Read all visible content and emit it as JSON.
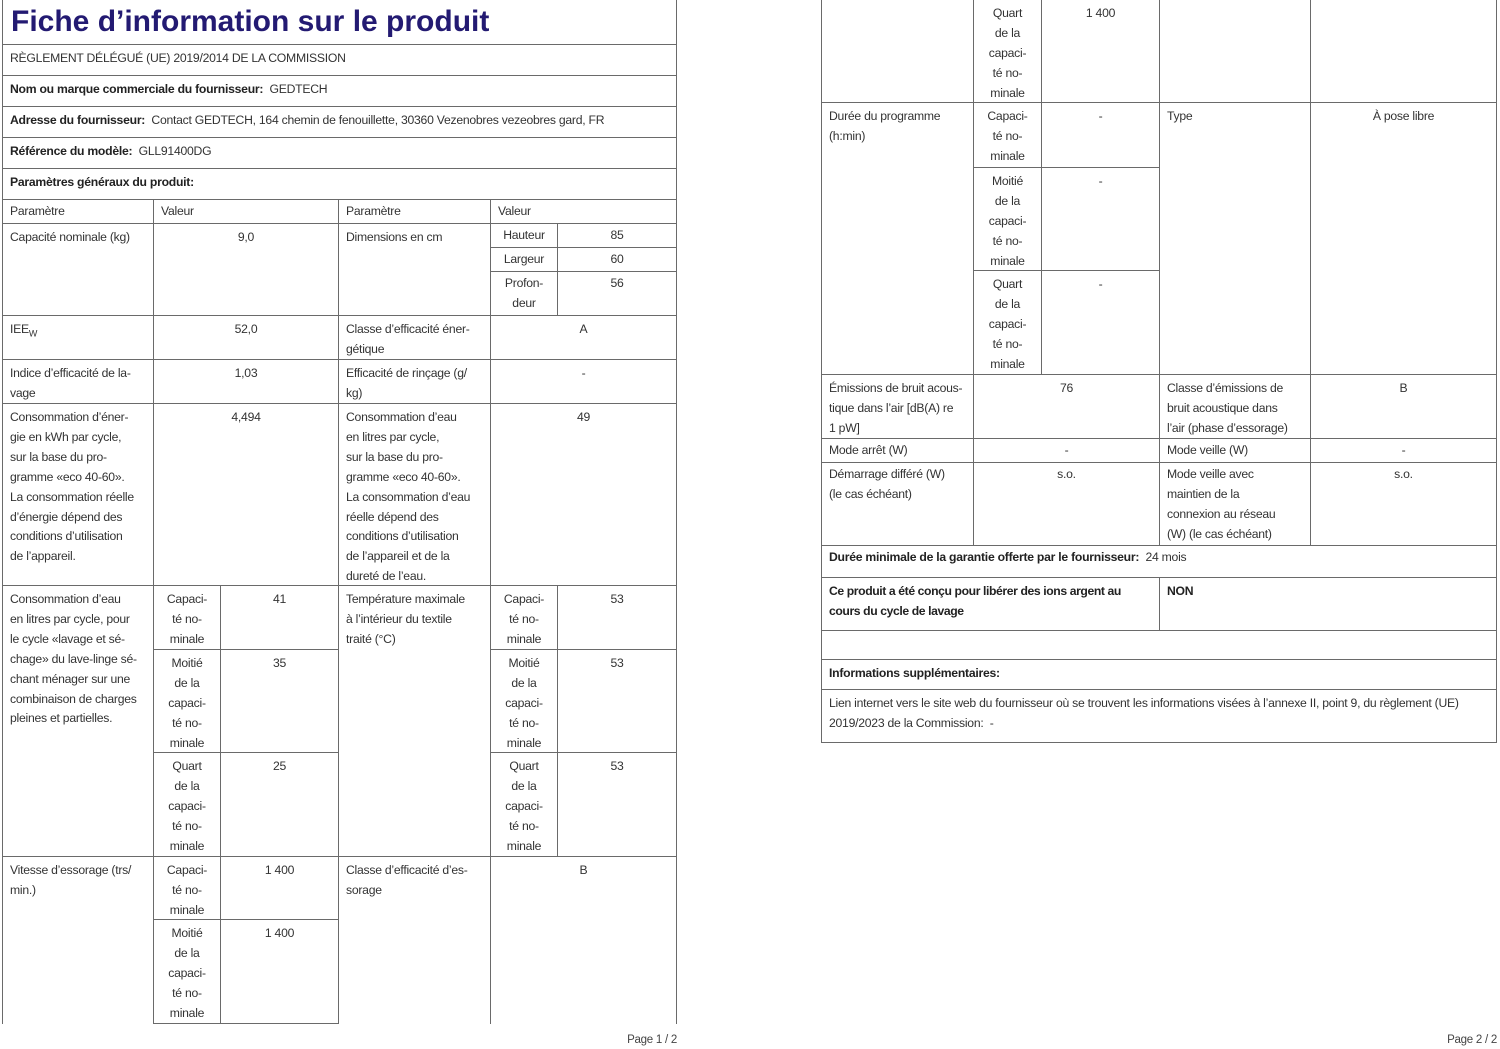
{
  "title": "Fiche d’information sur le produit",
  "regulation": "RÈGLEMENT DÉLÉGUÉ (UE) 2019/2014 DE LA COMMISSION",
  "supplier_name": {
    "label": "Nom ou marque commerciale du fournisseur:",
    "value": "GEDTECH"
  },
  "supplier_address": {
    "label": "Adresse du fournisseur:",
    "value": "Contact GEDTECH, 164 chemin de fenouillette, 30360 Vezenobres vezeobres gard, FR"
  },
  "model_ref": {
    "label": "Référence du modèle:",
    "value": "GLL91400DG"
  },
  "general_params": "Paramètres généraux du produit:",
  "headers": {
    "param": "Paramètre",
    "value": "Valeur"
  },
  "sub_labels": {
    "full": "Capaci-\nté no-\nminale",
    "half": "Moitié\nde la\ncapaci-\nté no-\nminale",
    "quarter": "Quart\nde la\ncapaci-\nté no-\nminale"
  },
  "page1": {
    "capacity": {
      "label": "Capacité nominale (kg)",
      "value": "9,0"
    },
    "dimensions": {
      "label": "Dimensions en cm",
      "height_label": "Hauteur",
      "height": "85",
      "width_label": "Largeur",
      "width": "60",
      "depth_label": "Profon-\ndeur",
      "depth": "56"
    },
    "ieew": {
      "label": "IEE",
      "sub": "W",
      "value": "52,0"
    },
    "energy_class": {
      "label": "Classe d’efficacité éner-\ngétique",
      "value": "A"
    },
    "washing_index": {
      "label": "Indice d’efficacité de la-\nvage",
      "value": "1,03"
    },
    "rinsing": {
      "label": "Efficacité de rinçage (g/\nkg)",
      "value": "-"
    },
    "energy_consumption": {
      "label": "Consommation d’éner-\ngie en kWh par cycle,\nsur la base du pro-\ngramme «eco 40-60».\nLa consommation réelle\nd’énergie dépend des\nconditions d’utilisation\nde l’appareil.",
      "value": "4,494"
    },
    "water_consumption": {
      "label": "Consommation d’eau\nen litres par cycle,\nsur la base du pro-\ngramme «eco 40-60».\nLa consommation d’eau\nréelle dépend des\nconditions d’utilisation\nde l’appareil et de la\ndureté de l’eau.",
      "value": "49"
    },
    "wash_dry_water": {
      "label": "Consommation d’eau\nen litres par cycle, pour\nle cycle «lavage et sé-\nchage» du lave-linge sé-\nchant ménager sur une\ncombinaison de charges\npleines et partielles.",
      "full": "41",
      "half": "35",
      "quarter": "25"
    },
    "max_temp": {
      "label": "Température maximale\nà l’intérieur du textile\ntraité (°C)",
      "full": "53",
      "half": "53",
      "quarter": "53"
    },
    "spin_speed": {
      "label": "Vitesse d’essorage (trs/\nmin.)",
      "full": "1 400",
      "half": "1 400"
    },
    "spin_class": {
      "label": "Classe d’efficacité d’es-\nsorage",
      "value": "B"
    },
    "footer": "Page 1 / 2"
  },
  "page2": {
    "spin_speed_quarter": "1 400",
    "program_duration": {
      "label": "Durée du programme\n(h:min)",
      "full": "-",
      "half": "-",
      "quarter": "-"
    },
    "type": {
      "label": "Type",
      "value": "À pose libre"
    },
    "noise": {
      "label": "Émissions de bruit acous-\ntique dans l’air [dB(A) re\n1 pW]",
      "value": "76"
    },
    "noise_class": {
      "label": "Classe d’émissions de\nbruit acoustique dans\nl’air (phase d’essorage)",
      "value": "B"
    },
    "off_mode": {
      "label": "Mode arrêt (W)",
      "value": "-"
    },
    "standby": {
      "label": "Mode veille (W)",
      "value": "-"
    },
    "delay_start": {
      "label": "Démarrage différé (W)\n(le cas échéant)",
      "value": "s.o."
    },
    "networked_standby": {
      "label": "Mode veille avec\nmaintien de la\nconnexion au réseau\n(W) (le cas échéant)",
      "value": "s.o."
    },
    "warranty": {
      "label": "Durée minimale de la garantie offerte par le fournisseur:",
      "value": "24 mois"
    },
    "silver_ions": {
      "label": "Ce produit a été conçu pour libérer des ions argent au\ncours du cycle de lavage",
      "value": "NON"
    },
    "additional_info": "Informations supplémentaires:",
    "web_link": {
      "label": "Lien internet vers le site web du fournisseur où se trouvent les informations visées à l’annexe II, point 9, du règlement (UE) 2019/2023 de la Commission:",
      "value": "-"
    },
    "footer": "Page 2 / 2"
  }
}
